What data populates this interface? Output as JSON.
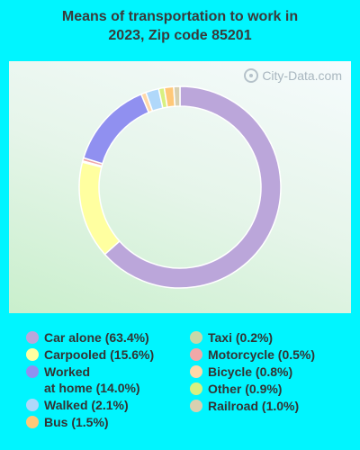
{
  "title_line1": "Means of transportation to work in",
  "title_line2": "2023, Zip code 85201",
  "watermark": "City-Data.com",
  "chart_data": {
    "type": "pie",
    "title": "Means of transportation to work in 2023, Zip code 85201",
    "slices": [
      {
        "name": "Car alone",
        "value": 63.4,
        "label": "Car alone (63.4%)",
        "color": "#BBA6DA"
      },
      {
        "name": "Carpooled",
        "value": 15.6,
        "label": "Carpooled (15.6%)",
        "color": "#FFFFA0"
      },
      {
        "name": "Worked at home",
        "value": 14.0,
        "label": "Worked\nat home (14.0%)",
        "color": "#9090F0"
      },
      {
        "name": "Walked",
        "value": 2.1,
        "label": "Walked (2.1%)",
        "color": "#B0D8FA"
      },
      {
        "name": "Bus",
        "value": 1.5,
        "label": "Bus (1.5%)",
        "color": "#FFC878"
      },
      {
        "name": "Taxi",
        "value": 0.2,
        "label": "Taxi (0.2%)",
        "color": "#C8D8A8"
      },
      {
        "name": "Motorcycle",
        "value": 0.5,
        "label": "Motorcycle (0.5%)",
        "color": "#F0A8A8"
      },
      {
        "name": "Bicycle",
        "value": 0.8,
        "label": "Bicycle (0.8%)",
        "color": "#FFD8A8"
      },
      {
        "name": "Other",
        "value": 0.9,
        "label": "Other (0.9%)",
        "color": "#D8F080"
      },
      {
        "name": "Railroad",
        "value": 1.0,
        "label": "Railroad (1.0%)",
        "color": "#D8D0B0"
      }
    ],
    "draw_order": [
      "Car alone",
      "Carpooled",
      "Taxi",
      "Motorcycle",
      "Worked at home",
      "Bicycle",
      "Walked",
      "Other",
      "Bus",
      "Railroad"
    ],
    "legend_left": [
      "Car alone",
      "Carpooled",
      "Worked at home",
      "Walked",
      "Bus"
    ],
    "legend_right": [
      "Taxi",
      "Motorcycle",
      "Bicycle",
      "Other",
      "Railroad"
    ],
    "legend_position": "bottom"
  }
}
